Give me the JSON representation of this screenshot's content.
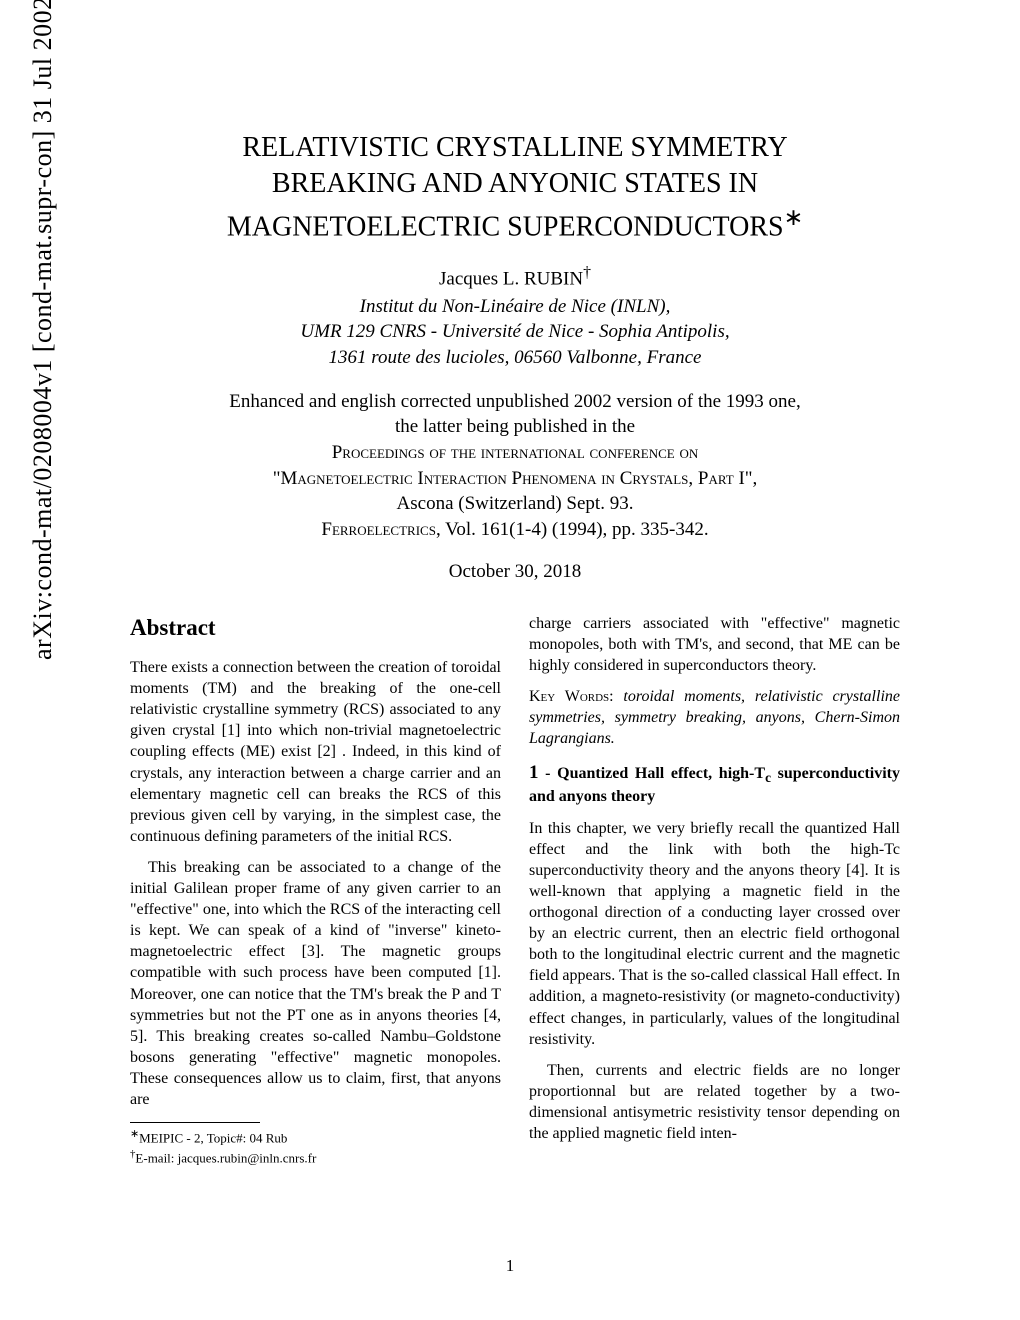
{
  "arxiv_id": "arXiv:cond-mat/0208004v1 [cond-mat.supr-con] 31 Jul 2002",
  "title_l1": "RELATIVISTIC CRYSTALLINE SYMMETRY",
  "title_l2": "BREAKING AND ANYONIC STATES IN",
  "title_l3": "MAGNETOELECTRIC SUPERCONDUCTORS",
  "title_mark": "∗",
  "author": "Jacques L. RUBIN",
  "author_mark": "†",
  "affiliation_l1": "Institut du Non-Linéaire de Nice (INLN),",
  "affiliation_l2": "UMR 129 CNRS - Université de Nice - Sophia Antipolis,",
  "affiliation_l3": "1361 route des lucioles, 06560 Valbonne, France",
  "pubnote_l1": "Enhanced and english corrected unpublished 2002 version of the 1993 one,",
  "pubnote_l2": "the latter being published in the",
  "pubnote_l3": "Proceedings of the international conference on",
  "pubnote_l4": "\"Magnetoelectric Interaction Phenomena in Crystals, Part I\",",
  "pubnote_l5": "Ascona (Switzerland) Sept. 93.",
  "pubnote_l6a": "Ferroelectrics",
  "pubnote_l6b": ", Vol. 161(1-4) (1994), pp. 335-342.",
  "date": "October 30, 2018",
  "abstract_heading": "Abstract",
  "abstract_p1": "There exists a connection between the creation of toroidal moments (TM) and the breaking of the one-cell relativistic crystalline symmetry (RCS) associated to any given crystal [1] into which non-trivial magnetoelectric coupling effects (ME) exist [2] . Indeed, in this kind of crystals, any interaction between a charge carrier and an elementary magnetic cell can breaks the RCS of this previous given cell by varying, in the simplest case, the continuous defining parameters of the initial RCS.",
  "abstract_p2": "This breaking can be associated to a change of the initial Galilean proper frame of any given carrier to an \"effective\" one, into which the RCS of the interacting cell is kept. We can speak of a kind of \"inverse\" kineto-magnetoelectric effect [3]. The magnetic groups compatible with such process have been computed [1]. Moreover, one can notice that the TM's break the P and T symmetries but not the PT one as in anyons theories [4, 5]. This breaking creates so-called Nambu–Goldstone bosons generating \"effective\" magnetic monopoles. These consequences allow us to claim, first, that anyons are",
  "right_p1": "charge carriers associated with \"effective\" magnetic monopoles, both with TM's, and second, that ME can be highly considered in superconductors theory.",
  "keywords_label": "Key Words:",
  "keywords_text": "toroidal moments, relativistic crystalline symmetries, symmetry breaking, anyons, Chern-Simon Lagrangians.",
  "section1_num": "1",
  "section1_title_a": "- Quantized Hall effect, high-T",
  "section1_title_sub": "c",
  "section1_title_b": " superconductivity and anyons theory",
  "right_p2": "In this chapter, we very briefly recall the quantized Hall effect and the link with both the high-Tc superconductivity theory and the anyons theory [4]. It is well-known that applying a magnetic field in the orthogonal direction of a conducting layer crossed over by an electric current, then an electric field orthogonal both to the longitudinal electric current and the magnetic field appears. That is the so-called classical Hall effect. In addition, a magneto-resistivity (or magneto-conductivity) effect changes, in particularly, values of the longitudinal resistivity.",
  "right_p3": "Then, currents and electric fields are no longer proportionnal but are related together by a two-dimensional antisymetric resistivity tensor depending on the applied magnetic field inten-",
  "footnote1_mark": "∗",
  "footnote1": "MEIPIC - 2, Topic#: 04 Rub",
  "footnote2_mark": "†",
  "footnote2": "E-mail: jacques.rubin@inln.cnrs.fr",
  "page_number": "1"
}
